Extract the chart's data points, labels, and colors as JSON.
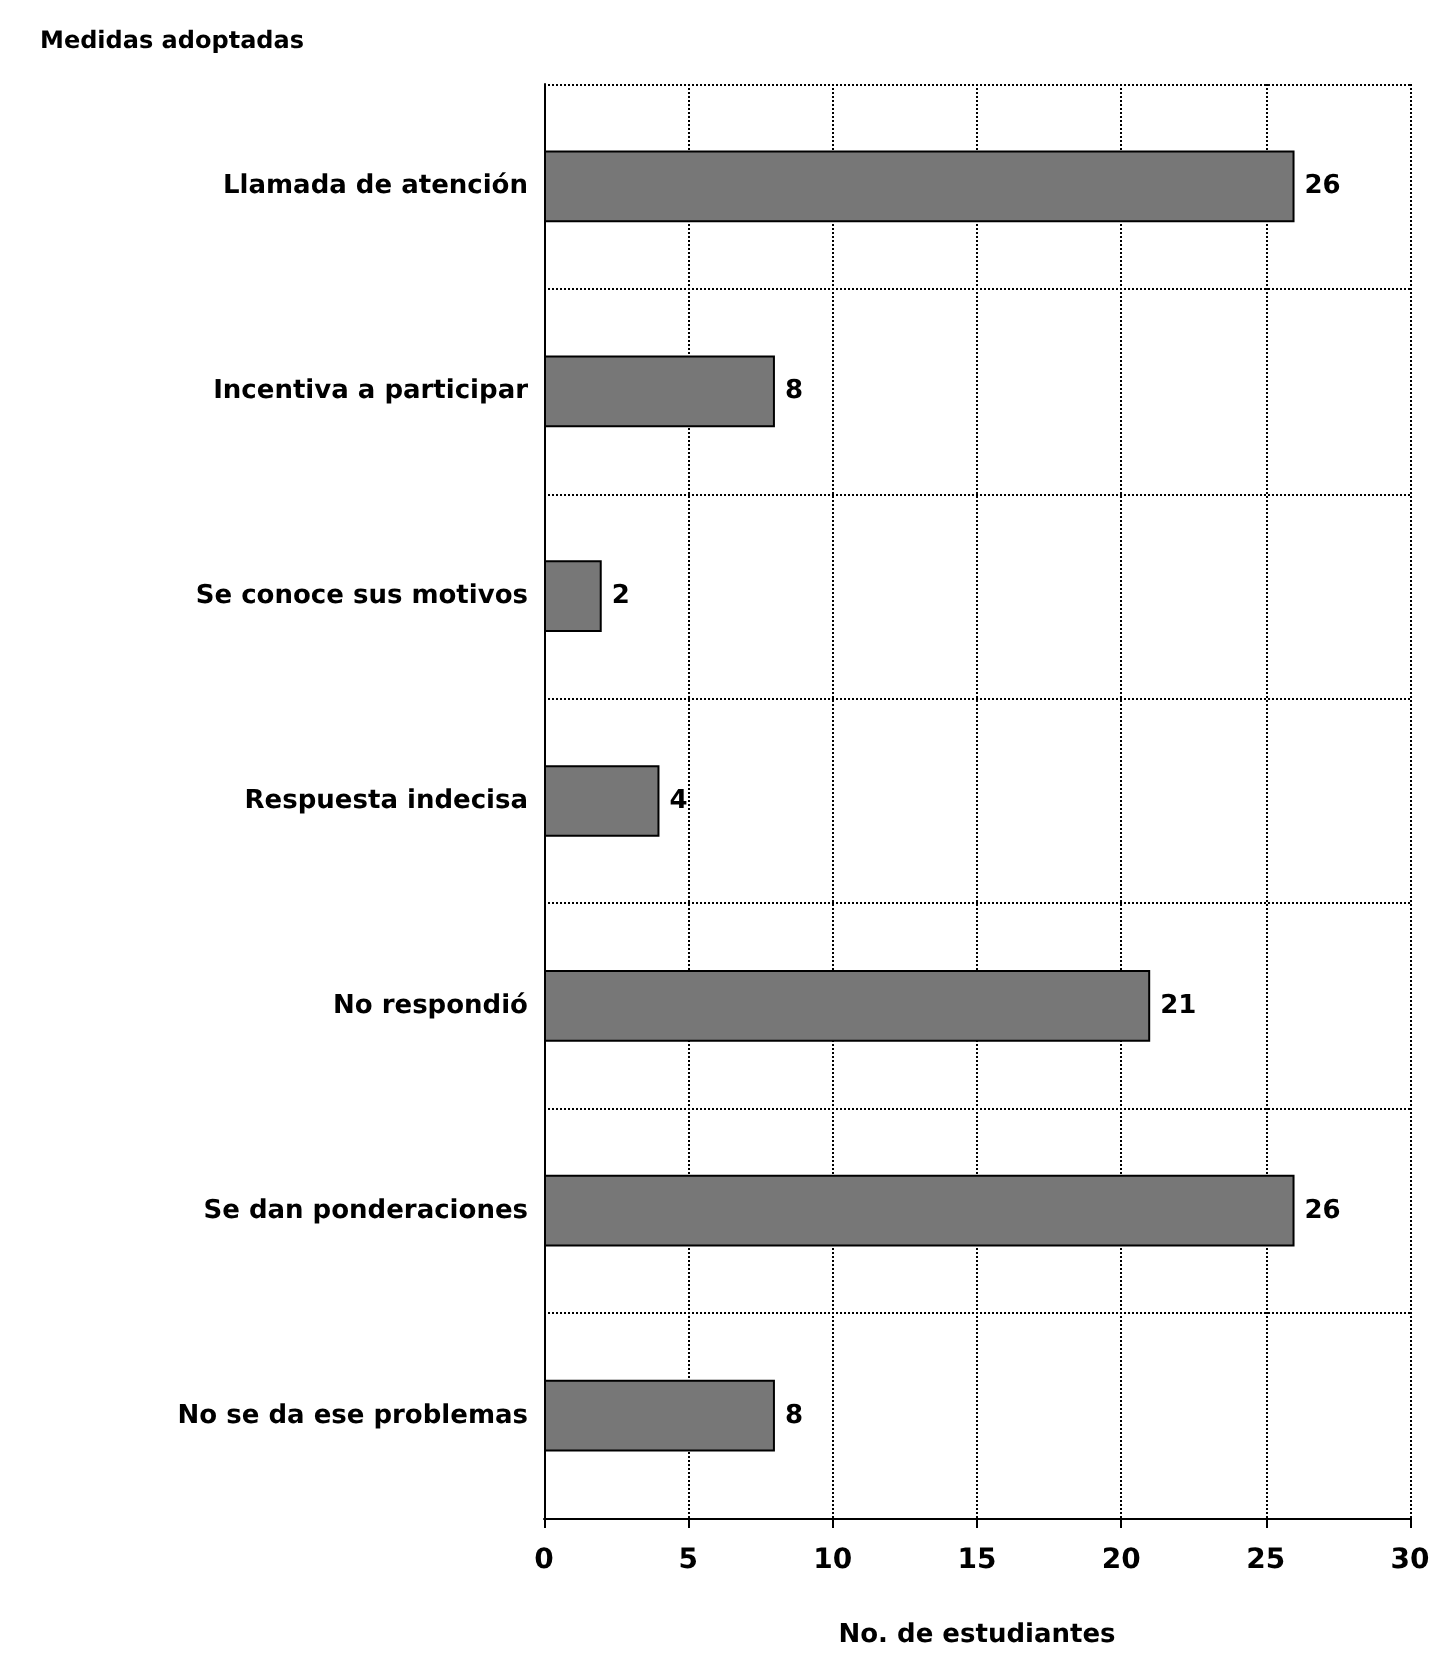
{
  "chart_data": {
    "type": "bar",
    "orientation": "horizontal",
    "ylabel": "Medidas adoptadas",
    "xlabel": "No. de estudiantes",
    "categories": [
      "Llamada de atención",
      "Incentiva a participar",
      "Se conoce sus motivos",
      "Respuesta indecisa",
      "No respondió",
      "Se dan ponderaciones",
      "No se da ese problemas"
    ],
    "values": [
      26,
      8,
      2,
      4,
      21,
      26,
      8
    ],
    "color": "#777777",
    "data_labels": true,
    "xlim": [
      0,
      30
    ],
    "xticks": [
      0,
      5,
      10,
      15,
      20,
      25,
      30
    ],
    "grid": true
  }
}
